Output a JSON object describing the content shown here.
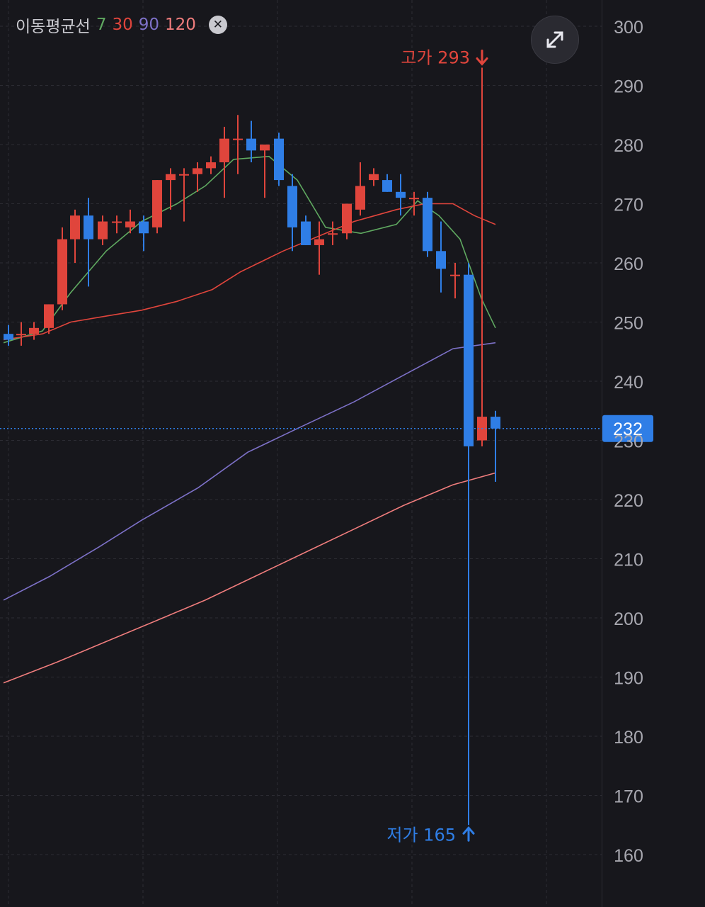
{
  "legend": {
    "title": "이동평균선",
    "periods": [
      "7",
      "30",
      "90",
      "120"
    ]
  },
  "colors": {
    "background": "#17171c",
    "grid": "#2c2c33",
    "up": "#e0453c",
    "down": "#2f7ee6",
    "ma7": "#5fa860",
    "ma30": "#e0453c",
    "ma90": "#7d71c8",
    "ma120": "#f07d7d",
    "axis_text": "#a8a8b0"
  },
  "chart_data": {
    "type": "candlestick",
    "ylim": [
      157,
      303
    ],
    "y_ticks": [
      300,
      290,
      280,
      270,
      260,
      250,
      240,
      230,
      220,
      210,
      200,
      190,
      180,
      170,
      160
    ],
    "current_price": 232,
    "high_annotation": {
      "label": "고가 293",
      "value": 293
    },
    "low_annotation": {
      "label": "저가 165",
      "value": 165
    },
    "candles": [
      {
        "o": 248,
        "h": 249.5,
        "l": 246,
        "c": 247,
        "x": 12
      },
      {
        "o": 248,
        "h": 250,
        "l": 246,
        "c": 248,
        "x": 30
      },
      {
        "o": 248,
        "h": 250,
        "l": 247,
        "c": 249,
        "x": 48
      },
      {
        "o": 249,
        "h": 253,
        "l": 248,
        "c": 253,
        "x": 69
      },
      {
        "o": 253,
        "h": 266,
        "l": 252,
        "c": 264,
        "x": 88
      },
      {
        "o": 264,
        "h": 269,
        "l": 260,
        "c": 268,
        "x": 106
      },
      {
        "o": 268,
        "h": 271,
        "l": 256,
        "c": 264,
        "x": 125
      },
      {
        "o": 264,
        "h": 268,
        "l": 263,
        "c": 267,
        "x": 145
      },
      {
        "o": 267,
        "h": 268,
        "l": 265,
        "c": 267,
        "x": 165
      },
      {
        "o": 266,
        "h": 269,
        "l": 265,
        "c": 267,
        "x": 184
      },
      {
        "o": 267,
        "h": 268,
        "l": 262,
        "c": 265,
        "x": 203
      },
      {
        "o": 266,
        "h": 274,
        "l": 265,
        "c": 274,
        "x": 222
      },
      {
        "o": 274,
        "h": 276,
        "l": 269,
        "c": 275,
        "x": 241
      },
      {
        "o": 275,
        "h": 276,
        "l": 267,
        "c": 275,
        "x": 260
      },
      {
        "o": 275,
        "h": 277,
        "l": 272,
        "c": 276,
        "x": 279
      },
      {
        "o": 276,
        "h": 278,
        "l": 275,
        "c": 277,
        "x": 298
      },
      {
        "o": 277,
        "h": 283,
        "l": 271,
        "c": 281,
        "x": 317
      },
      {
        "o": 281,
        "h": 285,
        "l": 275,
        "c": 281,
        "x": 336
      },
      {
        "o": 281,
        "h": 284,
        "l": 277,
        "c": 279,
        "x": 355
      },
      {
        "o": 279,
        "h": 280,
        "l": 271,
        "c": 280,
        "x": 374
      },
      {
        "o": 281,
        "h": 282,
        "l": 273,
        "c": 274,
        "x": 394
      },
      {
        "o": 273,
        "h": 275,
        "l": 262,
        "c": 266,
        "x": 413
      },
      {
        "o": 267,
        "h": 268,
        "l": 263,
        "c": 263,
        "x": 432
      },
      {
        "o": 263,
        "h": 267,
        "l": 258,
        "c": 264,
        "x": 451
      },
      {
        "o": 265,
        "h": 267,
        "l": 263,
        "c": 265,
        "x": 470
      },
      {
        "o": 265,
        "h": 270,
        "l": 264,
        "c": 270,
        "x": 490
      },
      {
        "o": 269,
        "h": 277,
        "l": 268,
        "c": 273,
        "x": 509
      },
      {
        "o": 274,
        "h": 276,
        "l": 273,
        "c": 275,
        "x": 528
      },
      {
        "o": 274,
        "h": 275,
        "l": 272,
        "c": 272,
        "x": 547
      },
      {
        "o": 272,
        "h": 275,
        "l": 268,
        "c": 271,
        "x": 566
      },
      {
        "o": 271,
        "h": 272,
        "l": 268,
        "c": 271,
        "x": 585
      },
      {
        "o": 271,
        "h": 272,
        "l": 261,
        "c": 262,
        "x": 604
      },
      {
        "o": 262,
        "h": 267,
        "l": 255,
        "c": 259,
        "x": 623
      },
      {
        "o": 258,
        "h": 260,
        "l": 254,
        "c": 258,
        "x": 643
      },
      {
        "o": 258,
        "h": 260,
        "l": 165,
        "c": 229,
        "x": 662
      },
      {
        "o": 230,
        "h": 293,
        "l": 229,
        "c": 234,
        "x": 681
      },
      {
        "o": 234,
        "h": 235,
        "l": 223,
        "c": 232,
        "x": 700
      }
    ],
    "ma_series": [
      {
        "period": "7",
        "color": "#5fa860",
        "points": [
          [
            5,
            246.5
          ],
          [
            60,
            248.5
          ],
          [
            100,
            255
          ],
          [
            150,
            262
          ],
          [
            200,
            267
          ],
          [
            250,
            270
          ],
          [
            290,
            273
          ],
          [
            330,
            277.5
          ],
          [
            380,
            278
          ],
          [
            420,
            274
          ],
          [
            460,
            266
          ],
          [
            510,
            265
          ],
          [
            560,
            266.5
          ],
          [
            590,
            270.5
          ],
          [
            620,
            268
          ],
          [
            650,
            264
          ],
          [
            680,
            254
          ],
          [
            700,
            249
          ]
        ]
      },
      {
        "period": "30",
        "color": "#e0453c",
        "points": [
          [
            5,
            247
          ],
          [
            60,
            248
          ],
          [
            100,
            250
          ],
          [
            150,
            251
          ],
          [
            200,
            252
          ],
          [
            250,
            253.5
          ],
          [
            300,
            255.5
          ],
          [
            340,
            258.5
          ],
          [
            400,
            262
          ],
          [
            450,
            264.5
          ],
          [
            500,
            267
          ],
          [
            560,
            269
          ],
          [
            600,
            270
          ],
          [
            640,
            270
          ],
          [
            670,
            268
          ],
          [
            700,
            266.5
          ]
        ]
      },
      {
        "period": "90",
        "color": "#7d71c8",
        "points": [
          [
            5,
            203
          ],
          [
            70,
            207
          ],
          [
            140,
            212
          ],
          [
            200,
            216.5
          ],
          [
            280,
            222
          ],
          [
            350,
            228
          ],
          [
            420,
            232
          ],
          [
            500,
            236.5
          ],
          [
            570,
            241
          ],
          [
            640,
            245.5
          ],
          [
            700,
            246.5
          ]
        ]
      },
      {
        "period": "120",
        "color": "#f07d7d",
        "points": [
          [
            5,
            189
          ],
          [
            80,
            192.5
          ],
          [
            150,
            196
          ],
          [
            220,
            199.5
          ],
          [
            290,
            203
          ],
          [
            360,
            207
          ],
          [
            430,
            211
          ],
          [
            500,
            215
          ],
          [
            570,
            219
          ],
          [
            640,
            222.5
          ],
          [
            700,
            224.5
          ]
        ]
      }
    ]
  }
}
